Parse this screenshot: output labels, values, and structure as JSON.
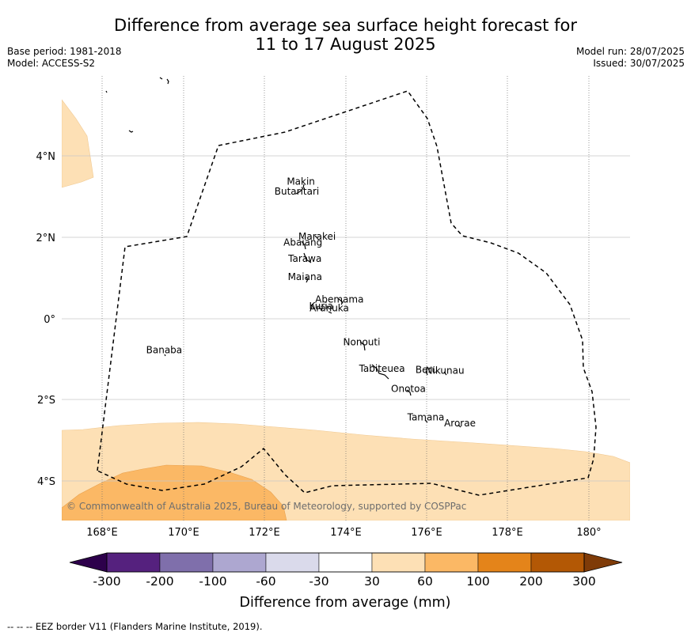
{
  "title": {
    "line1": "Difference from average sea surface height forecast for",
    "line2": "11 to 17 August 2025"
  },
  "meta_left": {
    "base_period": "Base period: 1981-2018",
    "model": "Model: ACCESS-S2"
  },
  "meta_right": {
    "model_run": "Model run: 28/07/2025",
    "issued": "Issued: 30/07/2025"
  },
  "map": {
    "lon_ticks": [
      "168°E",
      "170°E",
      "172°E",
      "174°E",
      "176°E",
      "178°E",
      "180°"
    ],
    "lat_ticks": [
      "4°N",
      "2°N",
      "0°",
      "2°S",
      "4°S"
    ],
    "copyright": "© Commonwealth of Australia 2025, Bureau of Meteorology, supported by COSPPac",
    "places": [
      {
        "name": "Makin",
        "lon": 172.9,
        "lat": 3.3
      },
      {
        "name": "Butaritari",
        "lon": 172.8,
        "lat": 3.05
      },
      {
        "name": "Marakei",
        "lon": 173.3,
        "lat": 1.95
      },
      {
        "name": "Abaiang",
        "lon": 172.95,
        "lat": 1.8
      },
      {
        "name": "Tarawa",
        "lon": 173.0,
        "lat": 1.4
      },
      {
        "name": "Maiana",
        "lon": 173.0,
        "lat": 0.95
      },
      {
        "name": "Abemama",
        "lon": 173.85,
        "lat": 0.4
      },
      {
        "name": "Kuria",
        "lon": 173.4,
        "lat": 0.23
      },
      {
        "name": "Aranuka",
        "lon": 173.6,
        "lat": 0.18
      },
      {
        "name": "Nonouti",
        "lon": 174.4,
        "lat": -0.65
      },
      {
        "name": "Banaba",
        "lon": 169.53,
        "lat": -0.85
      },
      {
        "name": "Tabiteuea",
        "lon": 174.9,
        "lat": -1.3
      },
      {
        "name": "Beru",
        "lon": 176.0,
        "lat": -1.33
      },
      {
        "name": "Nikunau",
        "lon": 176.45,
        "lat": -1.35
      },
      {
        "name": "Onotoa",
        "lon": 175.55,
        "lat": -1.8
      },
      {
        "name": "Tamana",
        "lon": 175.98,
        "lat": -2.5
      },
      {
        "name": "Arorae",
        "lon": 176.82,
        "lat": -2.65
      }
    ],
    "anomaly_regions": [
      {
        "class": "30 to 60",
        "color": "#fde0b5",
        "area": "north-west corner"
      },
      {
        "class": "30 to 60",
        "color": "#fde0b5",
        "area": "southern band"
      },
      {
        "class": "60 to 100",
        "color": "#fbb865",
        "area": "south-west"
      }
    ],
    "eez_style": "dashed black line"
  },
  "colorbar": {
    "title": "Difference from average (mm)",
    "tick_labels": [
      "-300",
      "-200",
      "-100",
      "-60",
      "-30",
      "30",
      "60",
      "100",
      "200",
      "300"
    ],
    "colors": [
      "#55217e",
      "#7f6fab",
      "#ada7d0",
      "#dadaeb",
      "#ffffff",
      "#fde0b5",
      "#fbb865",
      "#e4841a",
      "#b35805"
    ],
    "under_color": "#2d004b",
    "over_color": "#7f3b08"
  },
  "footer": "--  --  -- EEZ border V11 (Flanders Marine Institute, 2019)."
}
